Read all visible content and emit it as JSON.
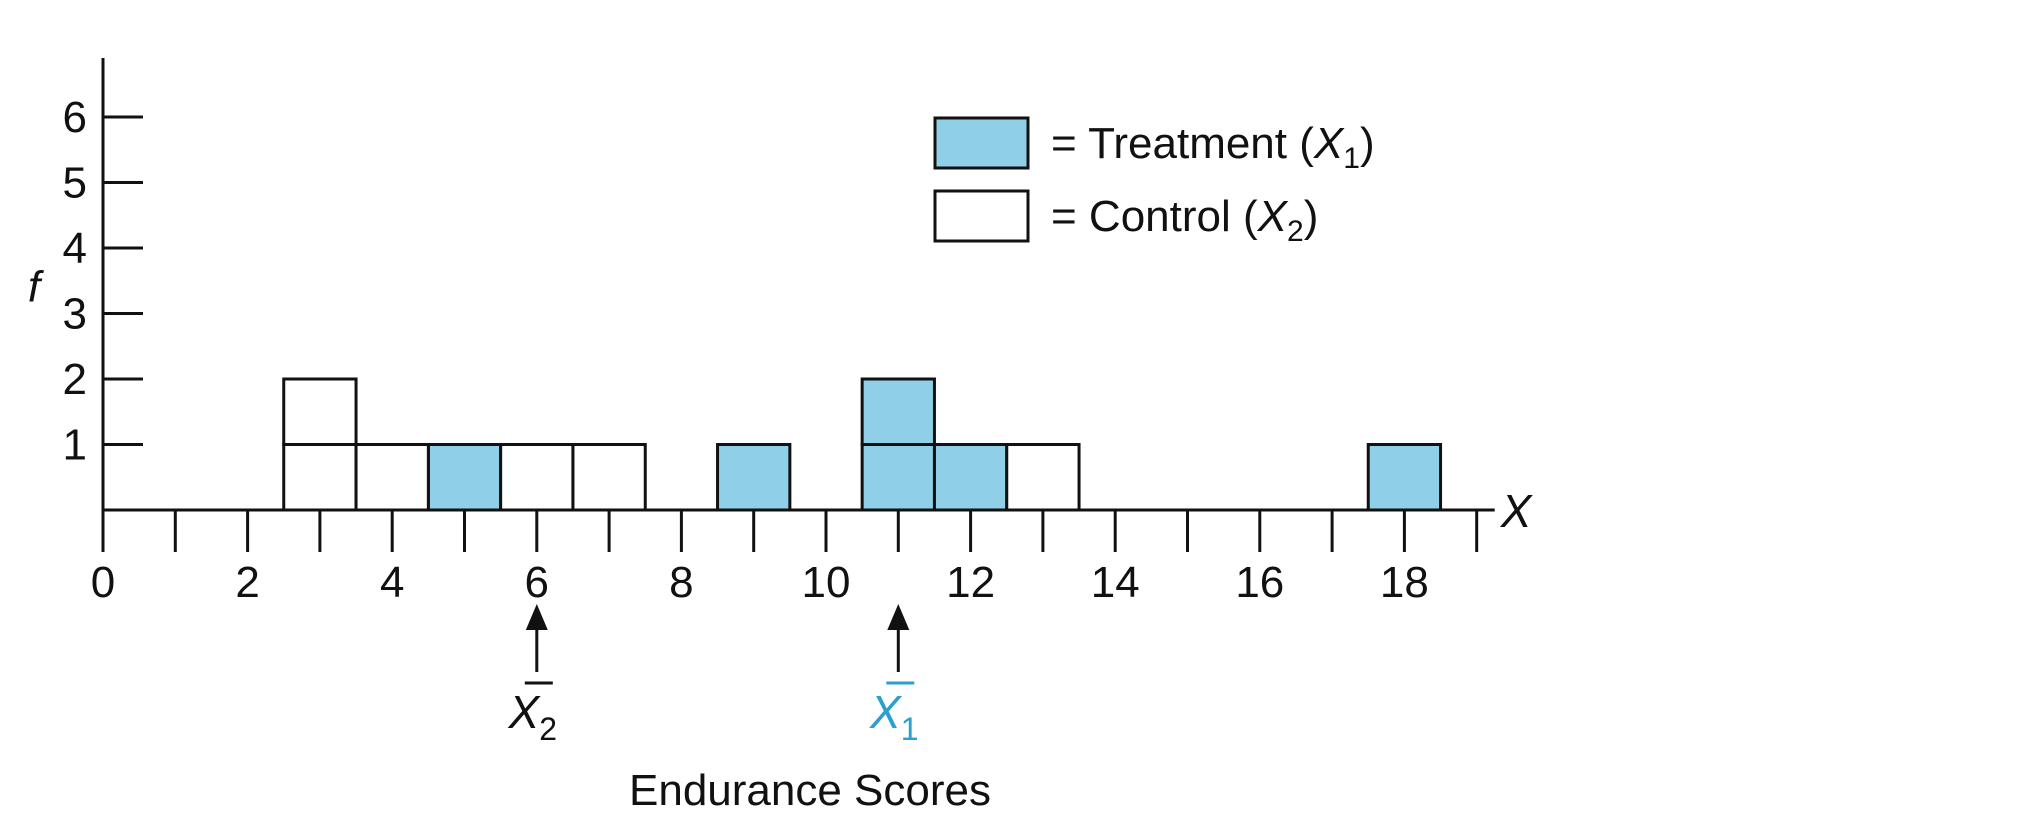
{
  "chart_data": {
    "type": "bar",
    "xlabel": "Endurance Scores",
    "ylabel": "f",
    "axis_end_label": "X",
    "xlim": [
      0,
      19
    ],
    "ylim": [
      0,
      6.9
    ],
    "x_ticks": [
      0,
      2,
      4,
      6,
      8,
      10,
      12,
      14,
      16,
      18
    ],
    "x_minor_tick_step": 1,
    "y_ticks": [
      1,
      2,
      3,
      4,
      5,
      6
    ],
    "series": [
      {
        "name": "Treatment",
        "symbol_sub": "1",
        "fill": "#8fd0e8",
        "x": [
          5,
          9,
          11,
          12,
          18
        ],
        "values": [
          1,
          1,
          2,
          1,
          1
        ]
      },
      {
        "name": "Control",
        "symbol_sub": "2",
        "fill": "#ffffff",
        "x": [
          3,
          4,
          6,
          7,
          13
        ],
        "values": [
          2,
          1,
          1,
          1,
          1
        ]
      }
    ],
    "stacked_control_on_treatment_at": [],
    "means": [
      {
        "series": "Control",
        "value": 6,
        "label_sub": "2",
        "color": "#111111"
      },
      {
        "series": "Treatment",
        "value": 11,
        "label_sub": "1",
        "color": "#2a9fd0"
      }
    ],
    "legend": {
      "position": "top-right",
      "prefix": "= ",
      "symbol": "X"
    },
    "colors": {
      "axis": "#111111",
      "treatment": "#8fd0e8",
      "control": "#ffffff",
      "treatment_mean": "#2a9fd0"
    }
  }
}
